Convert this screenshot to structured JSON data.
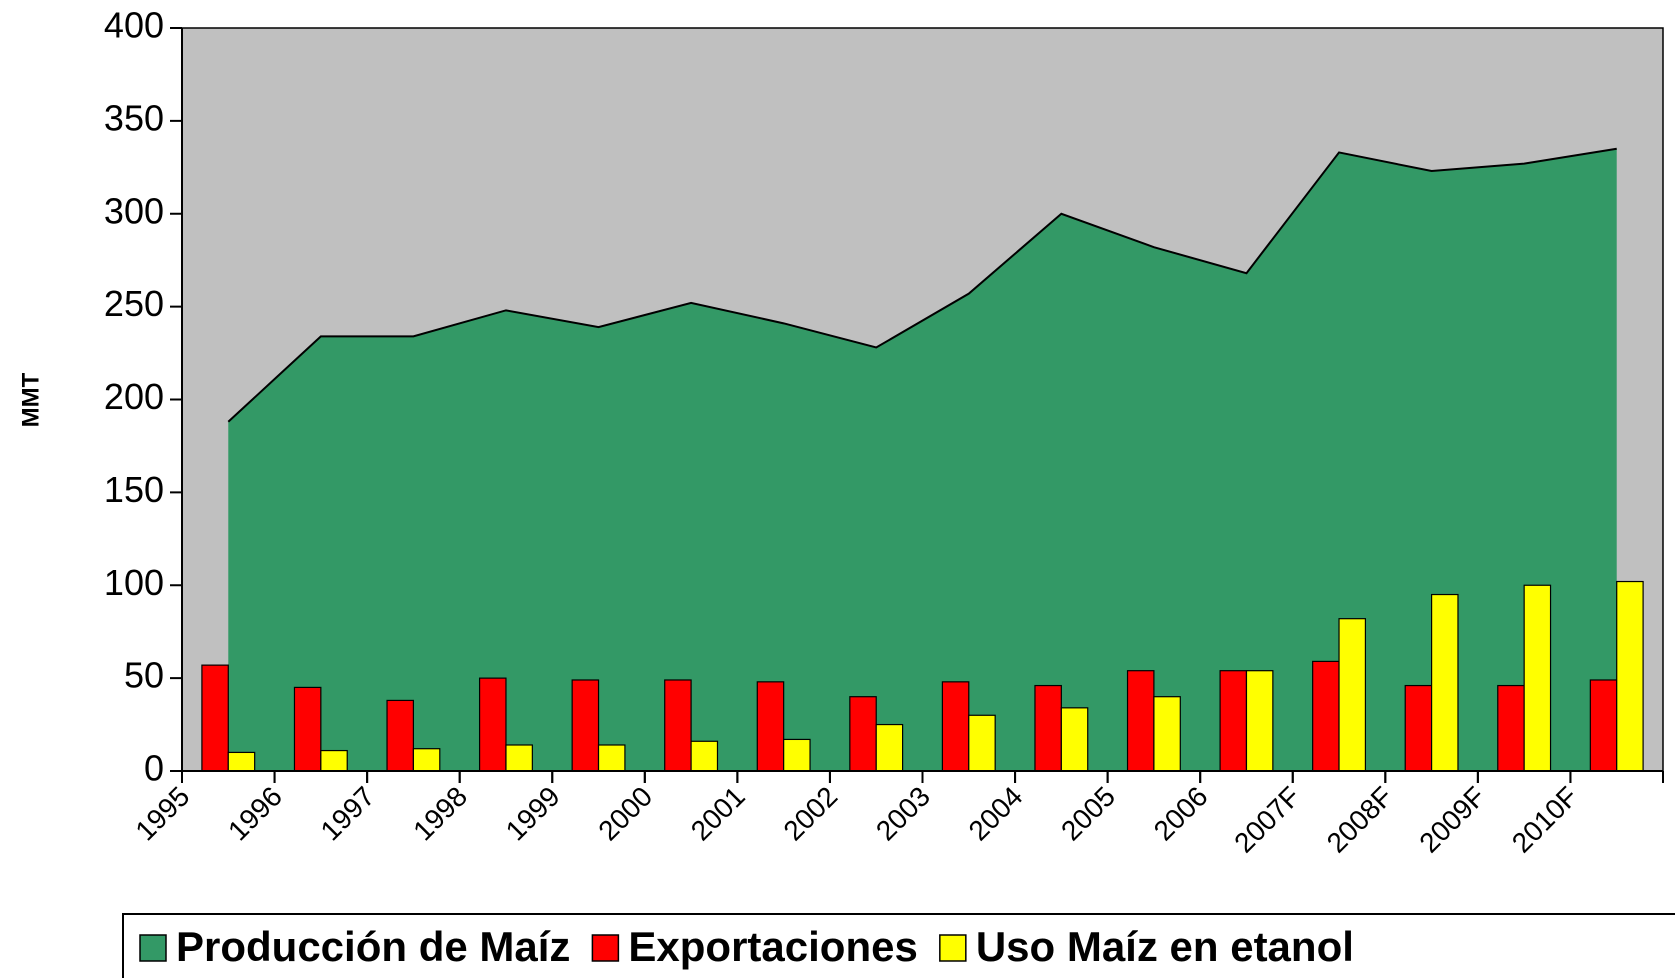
{
  "chart_data": {
    "type": "bar",
    "y_label": "MMT",
    "categories": [
      "1995",
      "1996",
      "1997",
      "1998",
      "1999",
      "2000",
      "2001",
      "2002",
      "2003",
      "2004",
      "2005",
      "2006",
      "2007F",
      "2008F",
      "2009F",
      "2010F"
    ],
    "series": [
      {
        "name": "Producción de Maíz",
        "type": "area",
        "color": "#339966",
        "values": [
          188,
          234,
          234,
          248,
          239,
          252,
          241,
          228,
          257,
          300,
          282,
          268,
          333,
          323,
          327,
          335
        ]
      },
      {
        "name": "Exportaciones",
        "type": "bar",
        "color": "#ff0000",
        "values": [
          57,
          45,
          38,
          50,
          49,
          49,
          48,
          40,
          48,
          46,
          54,
          54,
          59,
          46,
          46,
          49
        ]
      },
      {
        "name": "Uso Maíz en etanol",
        "type": "bar",
        "color": "#ffff00",
        "values": [
          10,
          11,
          12,
          14,
          14,
          16,
          17,
          25,
          30,
          34,
          40,
          54,
          82,
          95,
          100,
          102
        ]
      }
    ],
    "ylim": [
      0,
      400
    ],
    "yticks": [
      0,
      50,
      100,
      150,
      200,
      250,
      300,
      350,
      400
    ],
    "plot_background": "#c0c0c0",
    "legend": "bottom"
  }
}
